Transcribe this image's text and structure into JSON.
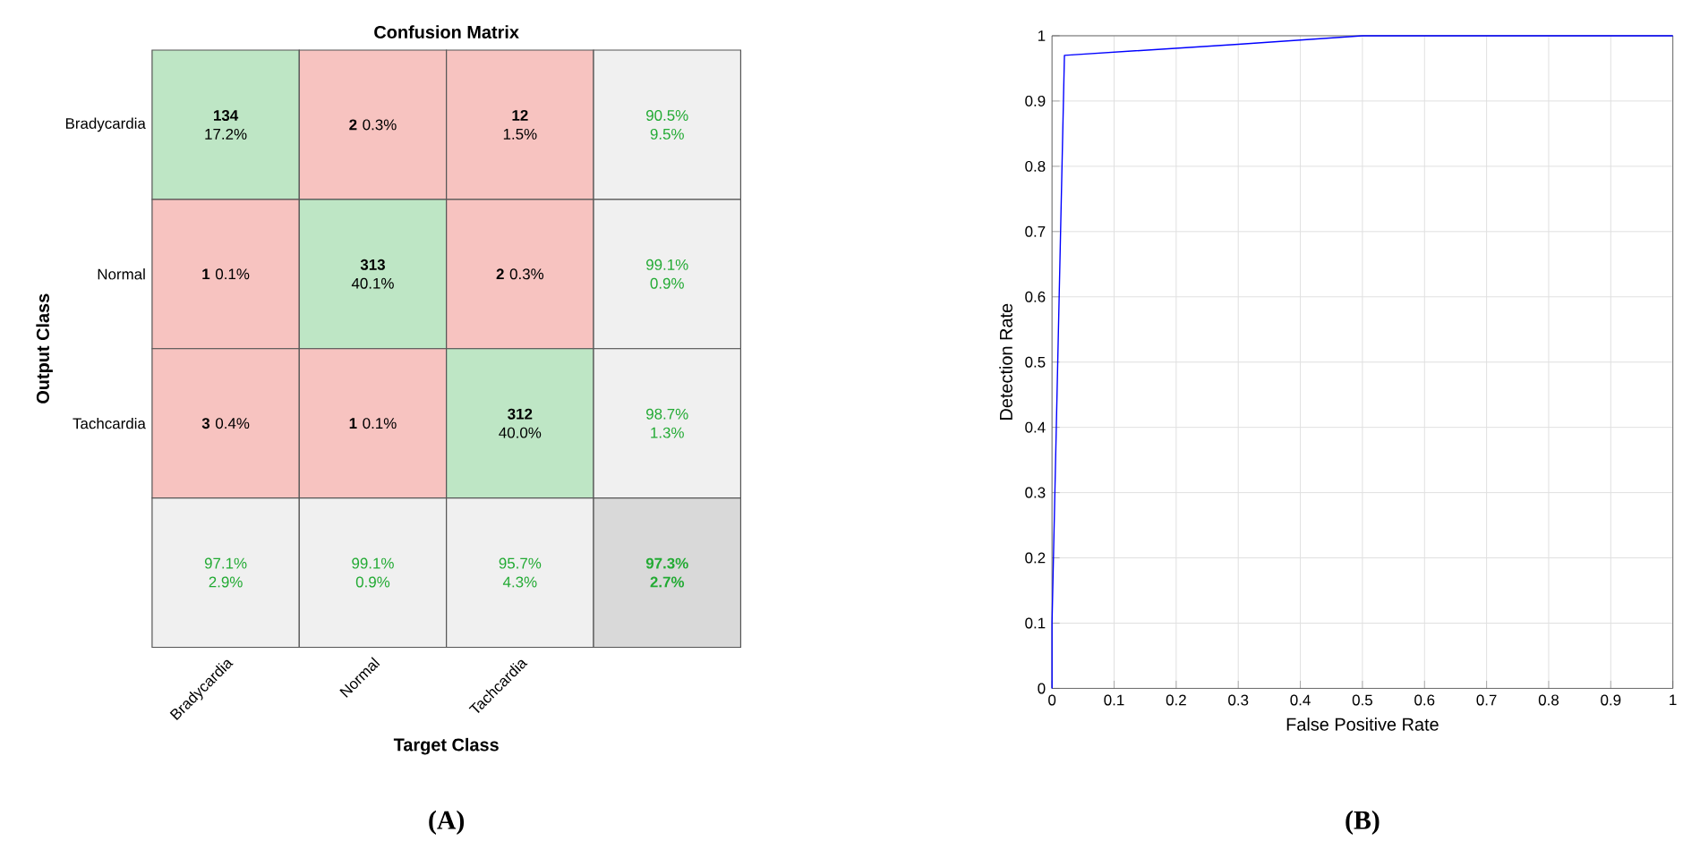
{
  "chart_data": [
    {
      "type": "other",
      "title": "Confusion Matrix",
      "xlabel": "Target Class",
      "ylabel": "Output Class",
      "categories": [
        "Bradycardia",
        "Normal",
        "Tachcardia",
        null
      ],
      "y_categories": [
        "Bradycardia",
        "Normal",
        "Tachcardia",
        null
      ],
      "cell_labels": [
        [
          "**134** 17.2%",
          "**2** 0.3%",
          "**12** 1.5%",
          "90.5% 9.5%"
        ],
        [
          "**1** 0.1%",
          "**313** 40.1%",
          "**2** 0.3%",
          "99.1% 0.9%"
        ],
        [
          "**3** 0.4%",
          "**1** 0.1%",
          "**312** 40.0%",
          "98.7% 1.3%"
        ],
        [
          "97.1% 2.9%",
          "99.1% 0.9%",
          "95.7% 4.3%",
          "97.3% 2.7%"
        ]
      ],
      "annotations": [
        "(A)"
      ]
    },
    {
      "type": "line",
      "xlabel": "False Positive Rate",
      "ylabel": "Detection Rate",
      "x": [
        0,
        0,
        0.02,
        0.3,
        0.5,
        1
      ],
      "series": [
        {
          "color": "#0000ff",
          "values": [
            0,
            0.1,
            0.97,
            0.987,
            1,
            1
          ]
        }
      ],
      "xlim": [
        0,
        1
      ],
      "ylim": [
        0,
        1
      ],
      "xticks": [
        0,
        0.1,
        0.2,
        0.3,
        0.4,
        0.5,
        0.6,
        0.7,
        0.8,
        0.9,
        1
      ],
      "yticks": [
        0,
        0.1,
        0.2,
        0.3,
        0.4,
        0.5,
        0.6,
        0.7,
        0.8,
        0.9,
        1
      ],
      "grid": true,
      "annotations": [
        "(B)"
      ]
    }
  ]
}
